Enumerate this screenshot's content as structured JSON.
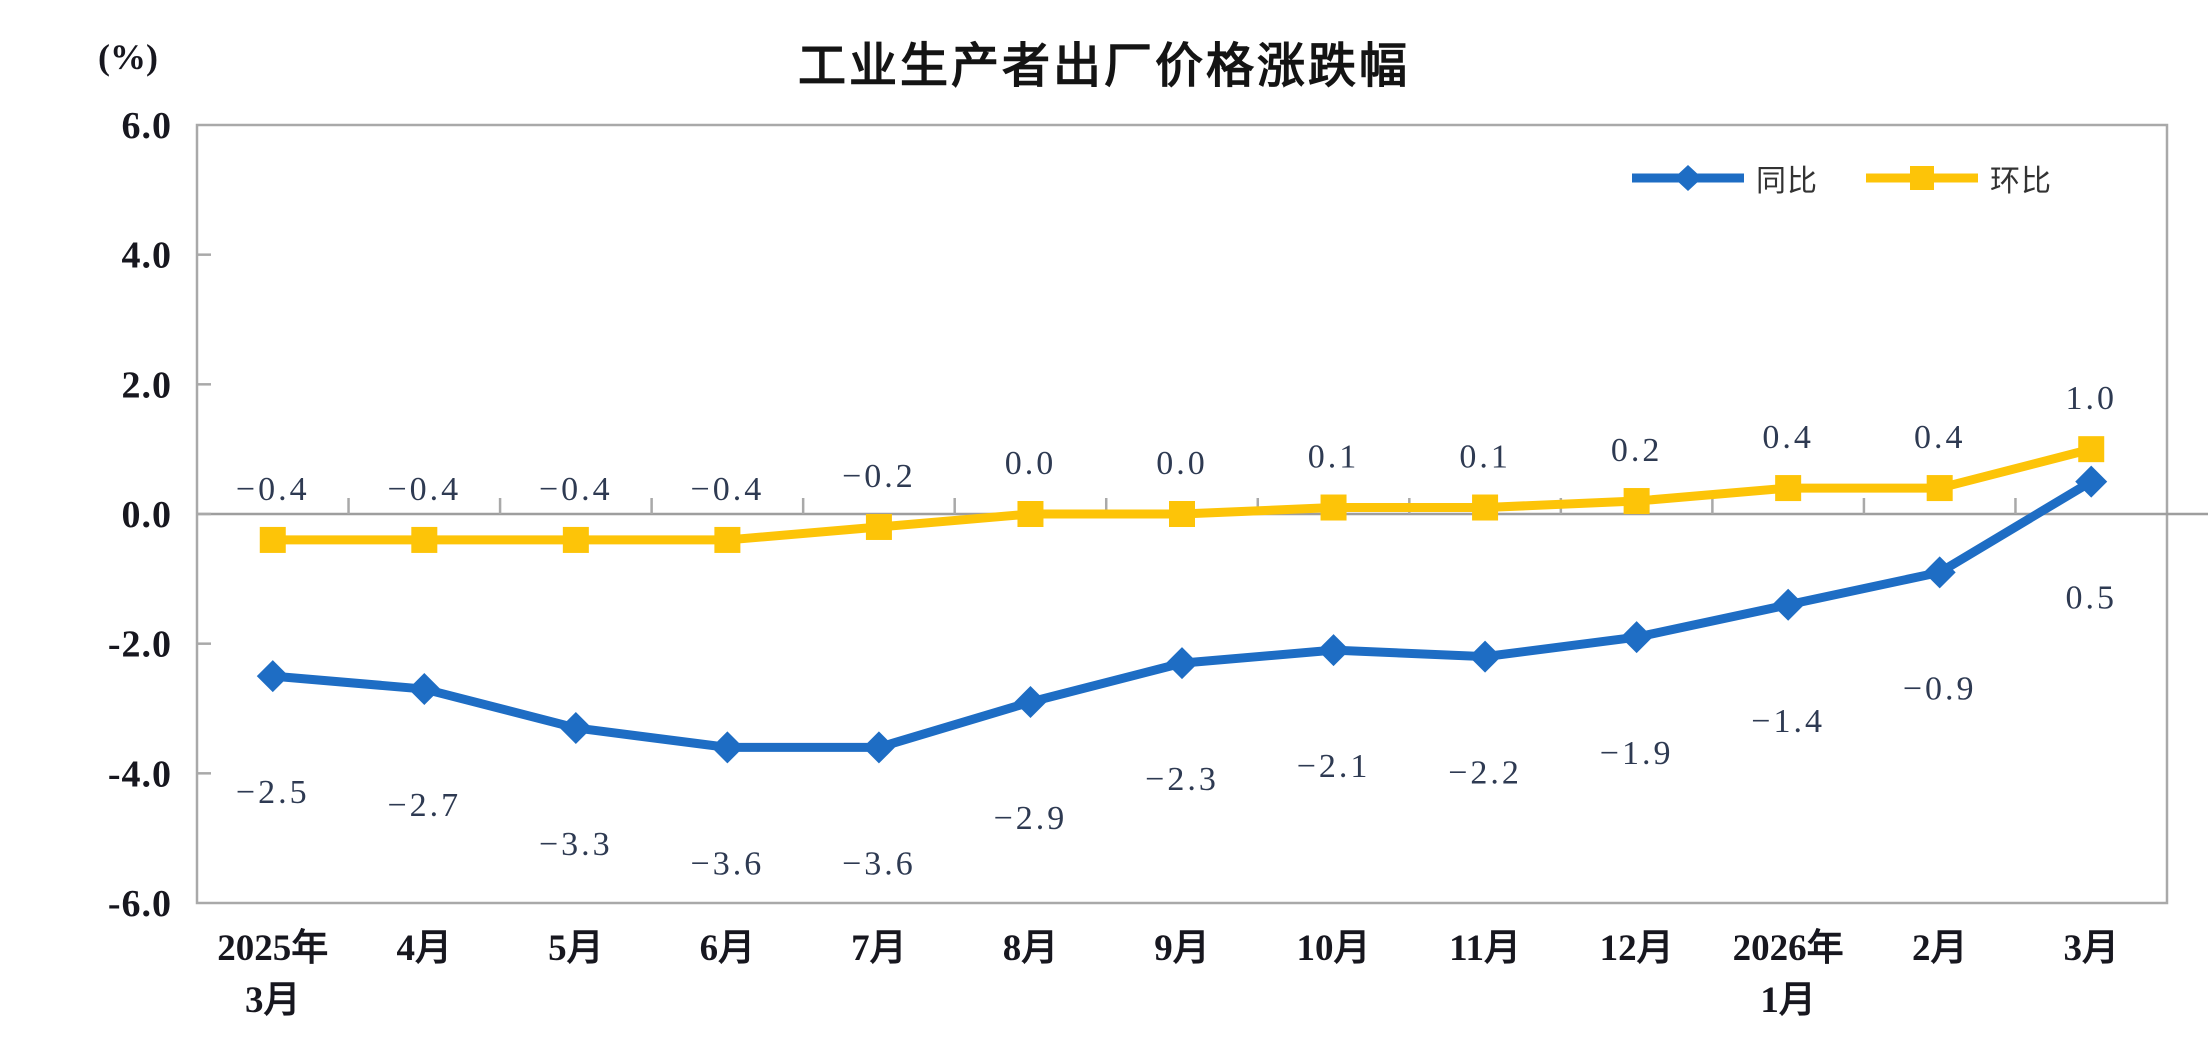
{
  "chart_data": {
    "type": "line",
    "title": "工业生产者出厂价格涨跌幅",
    "ylabel": "(%)",
    "categories": [
      [
        "2025年",
        "3月"
      ],
      [
        "4月"
      ],
      [
        "5月"
      ],
      [
        "6月"
      ],
      [
        "7月"
      ],
      [
        "8月"
      ],
      [
        "9月"
      ],
      [
        "10月"
      ],
      [
        "11月"
      ],
      [
        "12月"
      ],
      [
        "2026年",
        "1月"
      ],
      [
        "2月"
      ],
      [
        "3月"
      ]
    ],
    "series": [
      {
        "name": "同比",
        "marker": "diamond",
        "color": "#1e6dc4",
        "label_position": "below",
        "values": [
          -2.5,
          -2.7,
          -3.3,
          -3.6,
          -3.6,
          -2.9,
          -2.3,
          -2.1,
          -2.2,
          -1.9,
          -1.4,
          -0.9,
          0.5
        ],
        "labels": [
          "−2.5",
          "−2.7",
          "−3.3",
          "−3.6",
          "−3.6",
          "−2.9",
          "−2.3",
          "−2.1",
          "−2.2",
          "−1.9",
          "−1.4",
          "−0.9",
          "0.5"
        ]
      },
      {
        "name": "环比",
        "marker": "square",
        "color": "#fdc408",
        "label_position": "above",
        "values": [
          -0.4,
          -0.4,
          -0.4,
          -0.4,
          -0.2,
          0.0,
          0.0,
          0.1,
          0.1,
          0.2,
          0.4,
          0.4,
          1.0
        ],
        "labels": [
          "−0.4",
          "−0.4",
          "−0.4",
          "−0.4",
          "−0.2",
          "0.0",
          "0.0",
          "0.1",
          "0.1",
          "0.2",
          "0.4",
          "0.4",
          "1.0"
        ]
      }
    ],
    "y_axis": {
      "min": -6,
      "max": 6,
      "step": 2,
      "tick_labels": [
        "6.0",
        "4.0",
        "2.0",
        "0.0",
        "-2.0",
        "-4.0",
        "-6.0"
      ]
    },
    "ylim": [
      -6,
      6
    ],
    "grid": "zero-line-only",
    "legend_position": "top-right",
    "colors": {
      "axis": "#a9a9a9",
      "zero_line": "#9e9e9e",
      "data_label": "#2e3a52",
      "axis_label": "#17171f",
      "title": "#141414"
    }
  }
}
